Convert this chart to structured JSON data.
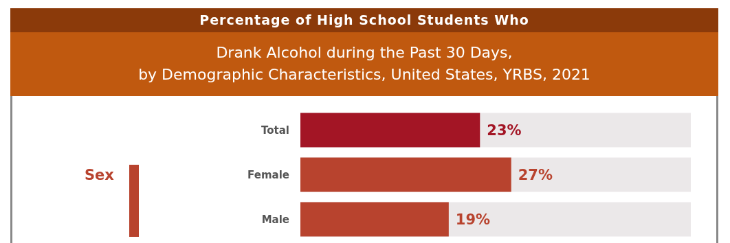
{
  "chart_data": {
    "type": "bar",
    "orientation": "horizontal",
    "title": "Percentage of High School Students Who",
    "subtitle": "Drank Alcohol during the Past 30 Days,\nby Demographic Characteristics, United States, YRBS, 2021",
    "categories": [
      "Total",
      "Female",
      "Male"
    ],
    "values": [
      23,
      27,
      19
    ],
    "colors": [
      "#a31525",
      "#b8432e",
      "#b8432e"
    ],
    "value_labels": [
      "23%",
      "27%",
      "19%"
    ],
    "xlim": [
      0,
      50
    ],
    "tick_labels": "y",
    "annotations": [
      "Sex"
    ]
  }
}
